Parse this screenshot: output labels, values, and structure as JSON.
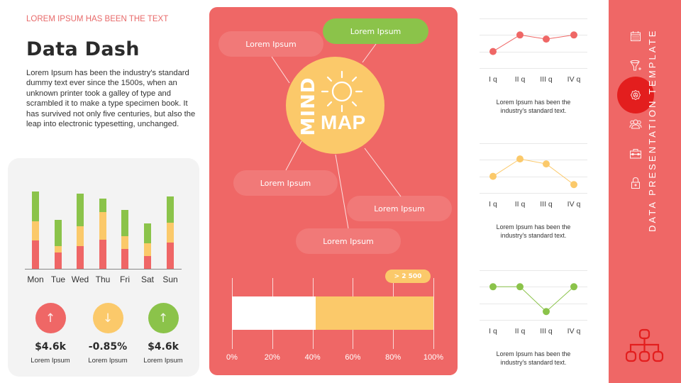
{
  "header": {
    "eyebrow": "LOREM IPSUM HAS BEEN THE TEXT",
    "title": "Data Dash",
    "description": "Lorem Ipsum has been the industry's standard dummy text ever since the 1500s, when an unknown printer took a galley of type and scrambled it to make a type specimen book. It has survived not only five centuries, but also the leap into electronic typesetting,  unchanged."
  },
  "colors": {
    "red": "#ef6766",
    "yellow": "#fbc96a",
    "green": "#8bc34a",
    "active": "#e31e1e",
    "card_bg": "#f3f3f3"
  },
  "stacked_chart": {
    "days": [
      "Mon",
      "Tue",
      "Wed",
      "Thu",
      "Fri",
      "Sat",
      "Sun"
    ],
    "red": [
      40,
      23,
      32,
      41,
      28,
      18,
      37
    ],
    "yellow": [
      27,
      9,
      28,
      39,
      18,
      18,
      28
    ],
    "green": [
      42,
      37,
      46,
      19,
      37,
      28,
      37
    ]
  },
  "stats": [
    {
      "icon": "arrow-up-icon",
      "glyph": "↑",
      "value": "$4.6k",
      "label": "Lorem Ipsum",
      "color": "#ef6766"
    },
    {
      "icon": "arrow-down-icon",
      "glyph": "↓",
      "value": "-0.85%",
      "label": "Lorem Ipsum",
      "color": "#fbc96a"
    },
    {
      "icon": "arrow-up-icon",
      "glyph": "↑",
      "value": "$4.6k",
      "label": "Lorem Ipsum",
      "color": "#8bc34a"
    }
  ],
  "mindmap": {
    "hub_word1": "MIND",
    "hub_word2": "MAP",
    "nodes": [
      "Lorem Ipsum",
      "Lorem Ipsum",
      "Lorem Ipsum",
      "Lorem Ipsum",
      "Lorem Ipsum",
      "Lorem Ipsum"
    ]
  },
  "progress": {
    "callout": "> 2 500",
    "value_pct": 41.5,
    "ticks": [
      "0%",
      "20%",
      "40%",
      "60%",
      "80%",
      "100%"
    ]
  },
  "line_charts": [
    {
      "color": "#ef6766",
      "quarters": [
        "I q",
        "II q",
        "III q",
        "IV q"
      ],
      "values": [
        1.0,
        2.0,
        1.75,
        2.0
      ],
      "caption_line1": "Lorem Ipsum has been the",
      "caption_line2": "industry's standard text."
    },
    {
      "color": "#fbc96a",
      "quarters": [
        "I q",
        "II q",
        "III q",
        "IV q"
      ],
      "values": [
        1.0,
        2.05,
        1.75,
        0.5
      ],
      "caption_line1": "Lorem Ipsum has been the",
      "caption_line2": "industry's standard text."
    },
    {
      "color": "#8bc34a",
      "quarters": [
        "I q",
        "II q",
        "III q",
        "IV q"
      ],
      "values": [
        2.0,
        2.0,
        0.5,
        2.0
      ],
      "caption_line1": "Lorem Ipsum has been the",
      "caption_line2": "industry's standard text."
    }
  ],
  "sidebar": {
    "title": "DATA PRESENTATION TEMPLATE",
    "icons": [
      "calendar-icon",
      "filter-add-icon",
      "gear-icon",
      "users-icon",
      "toolbox-icon",
      "lock-icon"
    ],
    "active_index": 2,
    "footer_icon": "org-chart-icon"
  }
}
